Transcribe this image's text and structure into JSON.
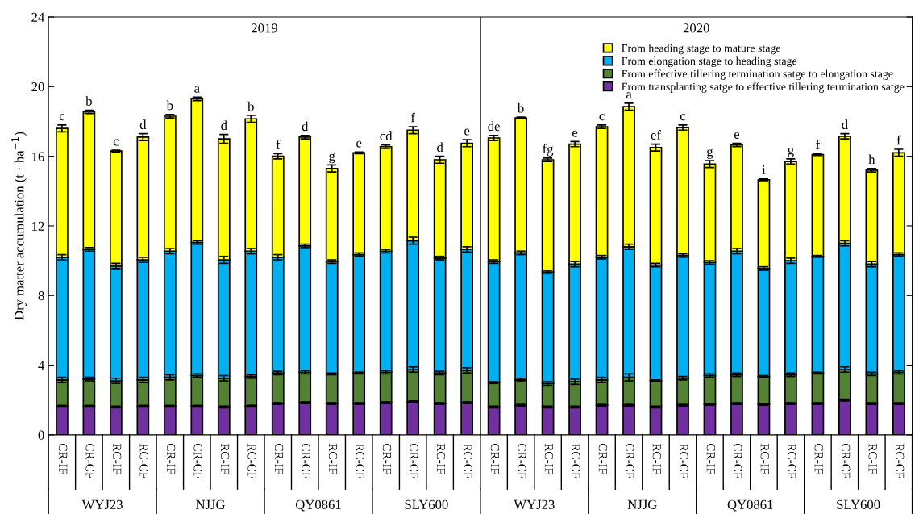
{
  "chart_data": {
    "type": "bar",
    "stacked": true,
    "ylabel": "Dry matter accumulation (t · ha$^{−1}$)",
    "categories": [
      "CR-IF",
      "CR-CF",
      "RC-IF",
      "RC-CF",
      "CR-IF",
      "CR-CF",
      "RC-IF",
      "RC-CF",
      "CR-IF",
      "CR-CF",
      "RC-IF",
      "RC-CF",
      "CR-IF",
      "CR-CF",
      "RC-IF",
      "RC-CF",
      "CR-IF",
      "CR-CF",
      "RC-IF",
      "RC-CF",
      "CR-IF",
      "CR-CF",
      "RC-IF",
      "RC-CF",
      "CR-IF",
      "CR-CF",
      "RC-IF",
      "RC-CF",
      "CR-IF",
      "CR-CF",
      "RC-IF",
      "RC-CF"
    ],
    "series": [
      {
        "name": "From transplanting satge to effective tillering termination satge",
        "color": "#7030a0",
        "values": [
          1.65,
          1.65,
          1.6,
          1.65,
          1.65,
          1.65,
          1.6,
          1.65,
          1.8,
          1.85,
          1.8,
          1.8,
          1.85,
          1.9,
          1.8,
          1.85,
          1.6,
          1.7,
          1.6,
          1.6,
          1.7,
          1.7,
          1.6,
          1.7,
          1.75,
          1.8,
          1.75,
          1.8,
          1.8,
          2.0,
          1.8,
          1.8
        ],
        "errors": [
          0.05,
          0.05,
          0.05,
          0.05,
          0.05,
          0.05,
          0.05,
          0.05,
          0.05,
          0.05,
          0.05,
          0.05,
          0.05,
          0.05,
          0.05,
          0.05,
          0.05,
          0.05,
          0.05,
          0.05,
          0.05,
          0.05,
          0.05,
          0.05,
          0.05,
          0.05,
          0.05,
          0.05,
          0.05,
          0.05,
          0.05,
          0.05
        ]
      },
      {
        "name": "From effective tillering termination satge to elongation stage",
        "color": "#548235",
        "values": [
          1.5,
          1.55,
          1.5,
          1.5,
          1.65,
          1.75,
          1.65,
          1.7,
          1.75,
          1.75,
          1.7,
          1.75,
          1.75,
          1.85,
          1.75,
          1.85,
          1.4,
          1.45,
          1.35,
          1.45,
          1.45,
          1.6,
          1.5,
          1.55,
          1.65,
          1.65,
          1.6,
          1.65,
          1.75,
          1.75,
          1.7,
          1.8
        ],
        "errors": [
          0.15,
          0.1,
          0.15,
          0.15,
          0.15,
          0.1,
          0.15,
          0.1,
          0.1,
          0.1,
          0.05,
          0.05,
          0.1,
          0.15,
          0.1,
          0.15,
          0.05,
          0.1,
          0.1,
          0.15,
          0.15,
          0.2,
          0.05,
          0.1,
          0.1,
          0.1,
          0.05,
          0.1,
          0.05,
          0.15,
          0.1,
          0.1
        ]
      },
      {
        "name": "From elongation stage to heading stage",
        "color": "#00b0f0",
        "values": [
          7.05,
          7.45,
          6.6,
          6.9,
          7.25,
          7.65,
          6.8,
          7.2,
          6.65,
          7.25,
          6.45,
          6.8,
          6.95,
          7.4,
          6.6,
          6.95,
          6.95,
          7.3,
          6.4,
          6.75,
          7.05,
          7.5,
          6.65,
          7.05,
          6.5,
          7.1,
          6.2,
          6.55,
          6.7,
          7.25,
          6.3,
          6.75
        ],
        "errors": [
          0.15,
          0.1,
          0.15,
          0.15,
          0.15,
          0.1,
          0.2,
          0.15,
          0.15,
          0.1,
          0.1,
          0.1,
          0.1,
          0.2,
          0.1,
          0.15,
          0.1,
          0.1,
          0.1,
          0.15,
          0.1,
          0.15,
          0.1,
          0.1,
          0.1,
          0.15,
          0.1,
          0.15,
          0.05,
          0.15,
          0.15,
          0.1
        ]
      },
      {
        "name": "From heading stage to mature stage",
        "color": "#ffff00",
        "values": [
          7.4,
          7.9,
          6.6,
          7.05,
          7.75,
          8.25,
          6.95,
          7.6,
          5.8,
          6.25,
          5.35,
          5.85,
          6.0,
          6.35,
          5.65,
          6.1,
          7.1,
          7.75,
          6.45,
          6.9,
          7.5,
          8.05,
          6.75,
          7.35,
          5.65,
          6.1,
          5.1,
          5.7,
          5.85,
          6.15,
          5.4,
          5.85
        ],
        "errors": [
          0.2,
          0.1,
          0.05,
          0.2,
          0.1,
          0.1,
          0.25,
          0.2,
          0.15,
          0.1,
          0.2,
          0.05,
          0.1,
          0.2,
          0.2,
          0.2,
          0.15,
          0.05,
          0.1,
          0.15,
          0.1,
          0.2,
          0.2,
          0.15,
          0.2,
          0.1,
          0.05,
          0.15,
          0.05,
          0.15,
          0.1,
          0.2
        ]
      }
    ],
    "totals": [
      "c",
      "b",
      "c",
      "d",
      "b",
      "a",
      "d",
      "b",
      "f",
      "d",
      "g",
      "e",
      "cd",
      "f",
      "d",
      "e",
      "de",
      "b",
      "fg",
      "e",
      "c",
      "a",
      "ef",
      "c",
      "g",
      "e",
      "i",
      "g",
      "f",
      "d",
      "h",
      "f"
    ],
    "annotations": [
      "2019",
      "2020",
      "WYJ23",
      "NJJG",
      "QY0861",
      "SLY600",
      "WYJ23",
      "NJJG",
      "QY0861",
      "SLY600"
    ],
    "ylim": [
      0,
      24
    ],
    "yticks": [
      0,
      4,
      8,
      12,
      16,
      20,
      24
    ],
    "legend": "top right",
    "grid": false
  }
}
